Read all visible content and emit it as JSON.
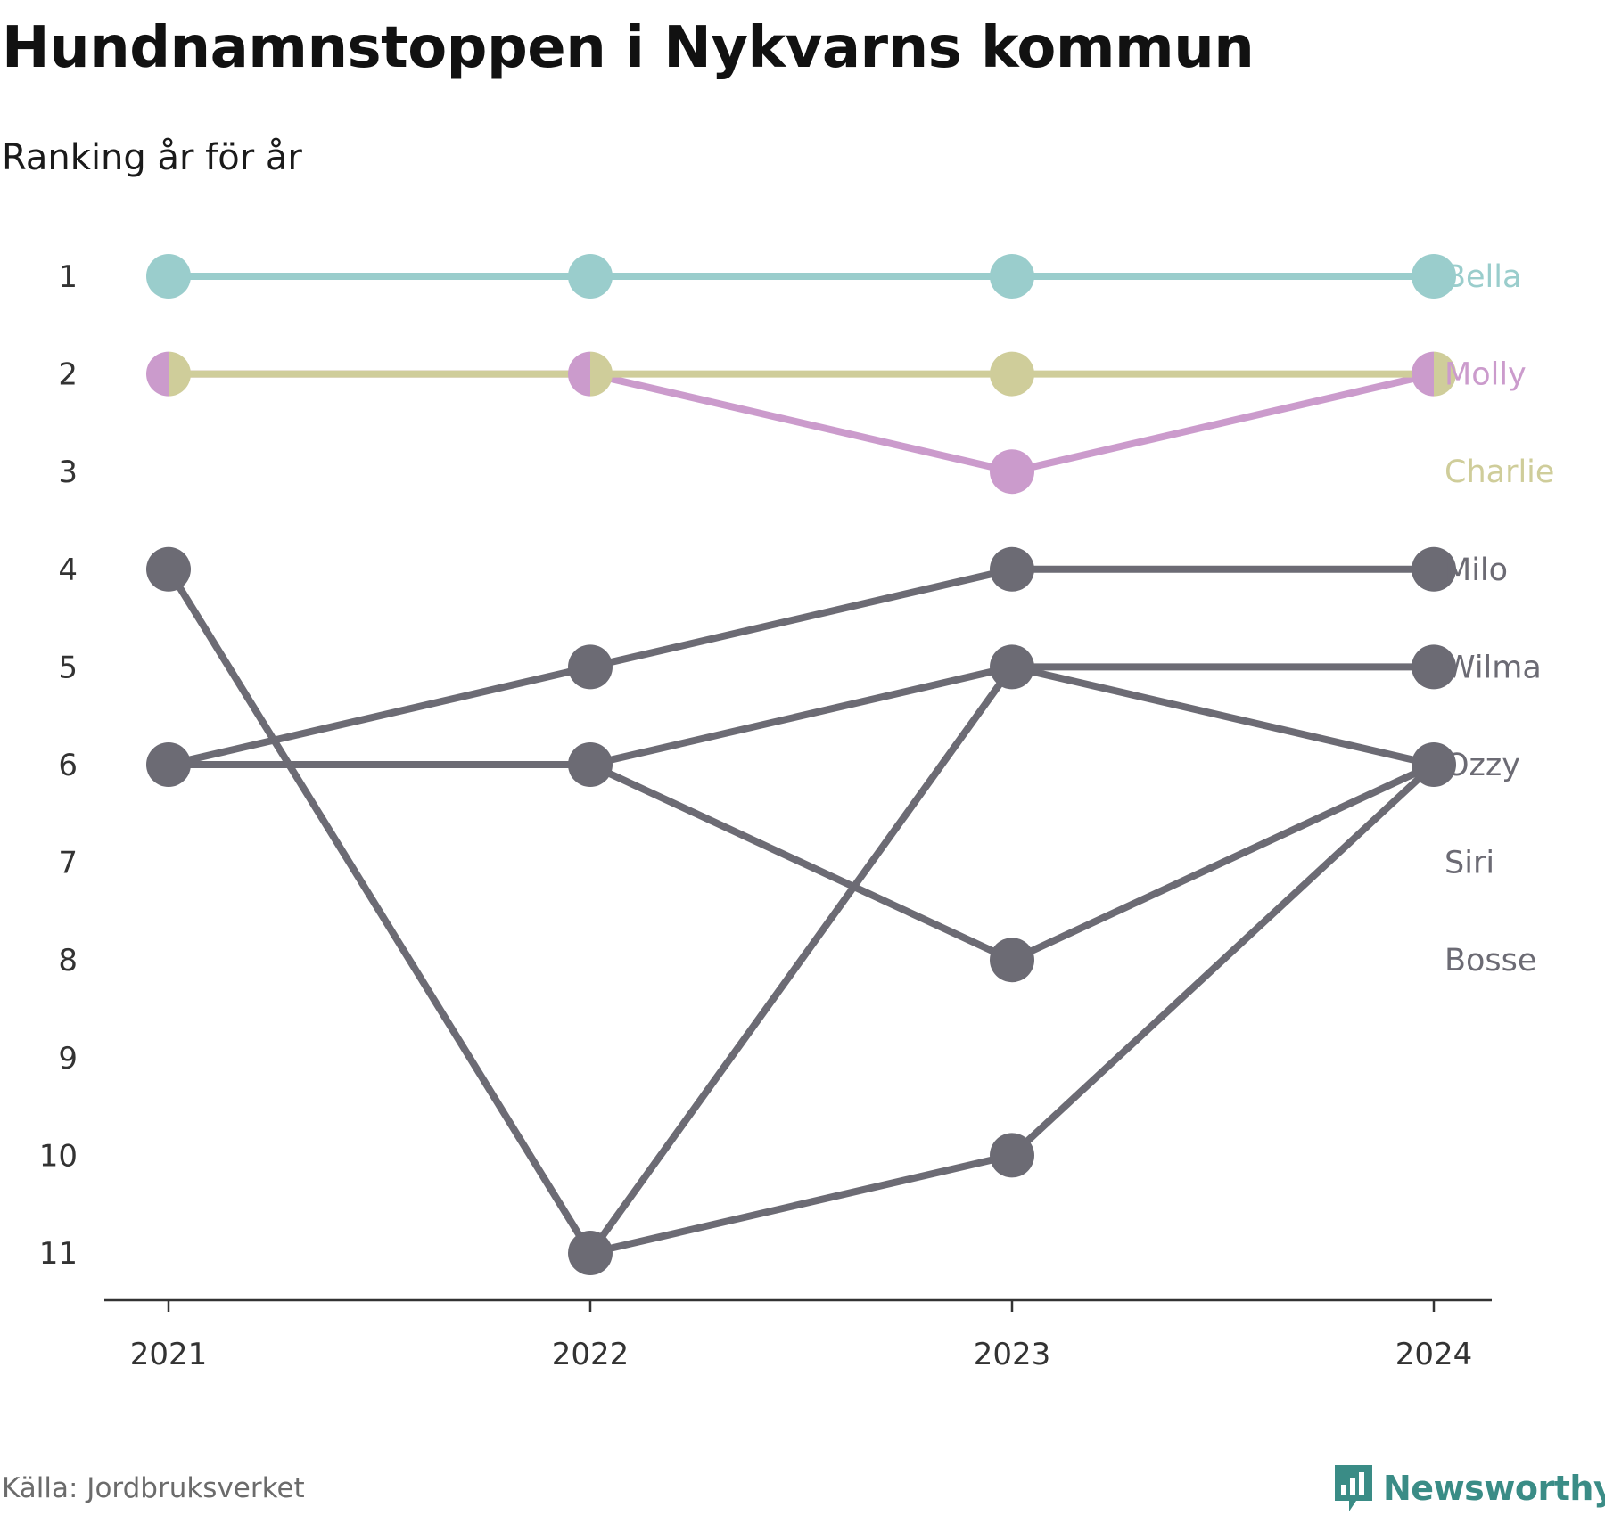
{
  "title": "Hundnamnstoppen i Nykvarns kommun",
  "subtitle": "Ranking år för år",
  "source": "Källa: Jordbruksverket",
  "brand": {
    "name": "Newsworthy",
    "logo_icon": "bar-chart-bubble-icon",
    "color": "#3a8c86"
  },
  "colors": {
    "axis": "#333333",
    "tick_text": "#333333"
  },
  "chart_data": {
    "type": "line",
    "subtype": "bump-chart",
    "x": [
      "2021",
      "2022",
      "2023",
      "2024"
    ],
    "y_ticks": [
      "1",
      "2",
      "3",
      "4",
      "5",
      "6",
      "7",
      "8",
      "9",
      "10",
      "11"
    ],
    "ylim": [
      1,
      11
    ],
    "y_inverted": true,
    "grid": false,
    "legend": "direct labels at right",
    "series": [
      {
        "name": "Bella",
        "color": "#9acdcc",
        "values": [
          1,
          1,
          1,
          1
        ]
      },
      {
        "name": "Molly",
        "color": "#cb9bcc",
        "values": [
          2,
          2,
          3,
          2
        ]
      },
      {
        "name": "Charlie",
        "color": "#cfcd9a",
        "values": [
          2,
          2,
          2,
          2
        ]
      },
      {
        "name": "Milo",
        "color": "#6c6b74",
        "values": [
          6,
          5,
          4,
          4
        ]
      },
      {
        "name": "Wilma",
        "color": "#6c6b74",
        "values": [
          6,
          6,
          5,
          5
        ]
      },
      {
        "name": "Ozzy",
        "color": "#6c6b74",
        "values": [
          4,
          11,
          5,
          6
        ]
      },
      {
        "name": "Siri",
        "color": "#6c6b74",
        "values": [
          null,
          6,
          8,
          6
        ]
      },
      {
        "name": "Bosse",
        "color": "#6c6b74",
        "values": [
          null,
          11,
          10,
          6
        ]
      }
    ],
    "end_labels": [
      {
        "name": "Bella",
        "color": "#9acdcc"
      },
      {
        "name": "Molly",
        "color": "#cb9bcc"
      },
      {
        "name": "Charlie",
        "color": "#cfcd9a"
      },
      {
        "name": "Milo",
        "color": "#6c6b74"
      },
      {
        "name": "Wilma",
        "color": "#6c6b74"
      },
      {
        "name": "Ozzy",
        "color": "#6c6b74"
      },
      {
        "name": "Siri",
        "color": "#6c6b74"
      },
      {
        "name": "Bosse",
        "color": "#6c6b74"
      }
    ]
  }
}
